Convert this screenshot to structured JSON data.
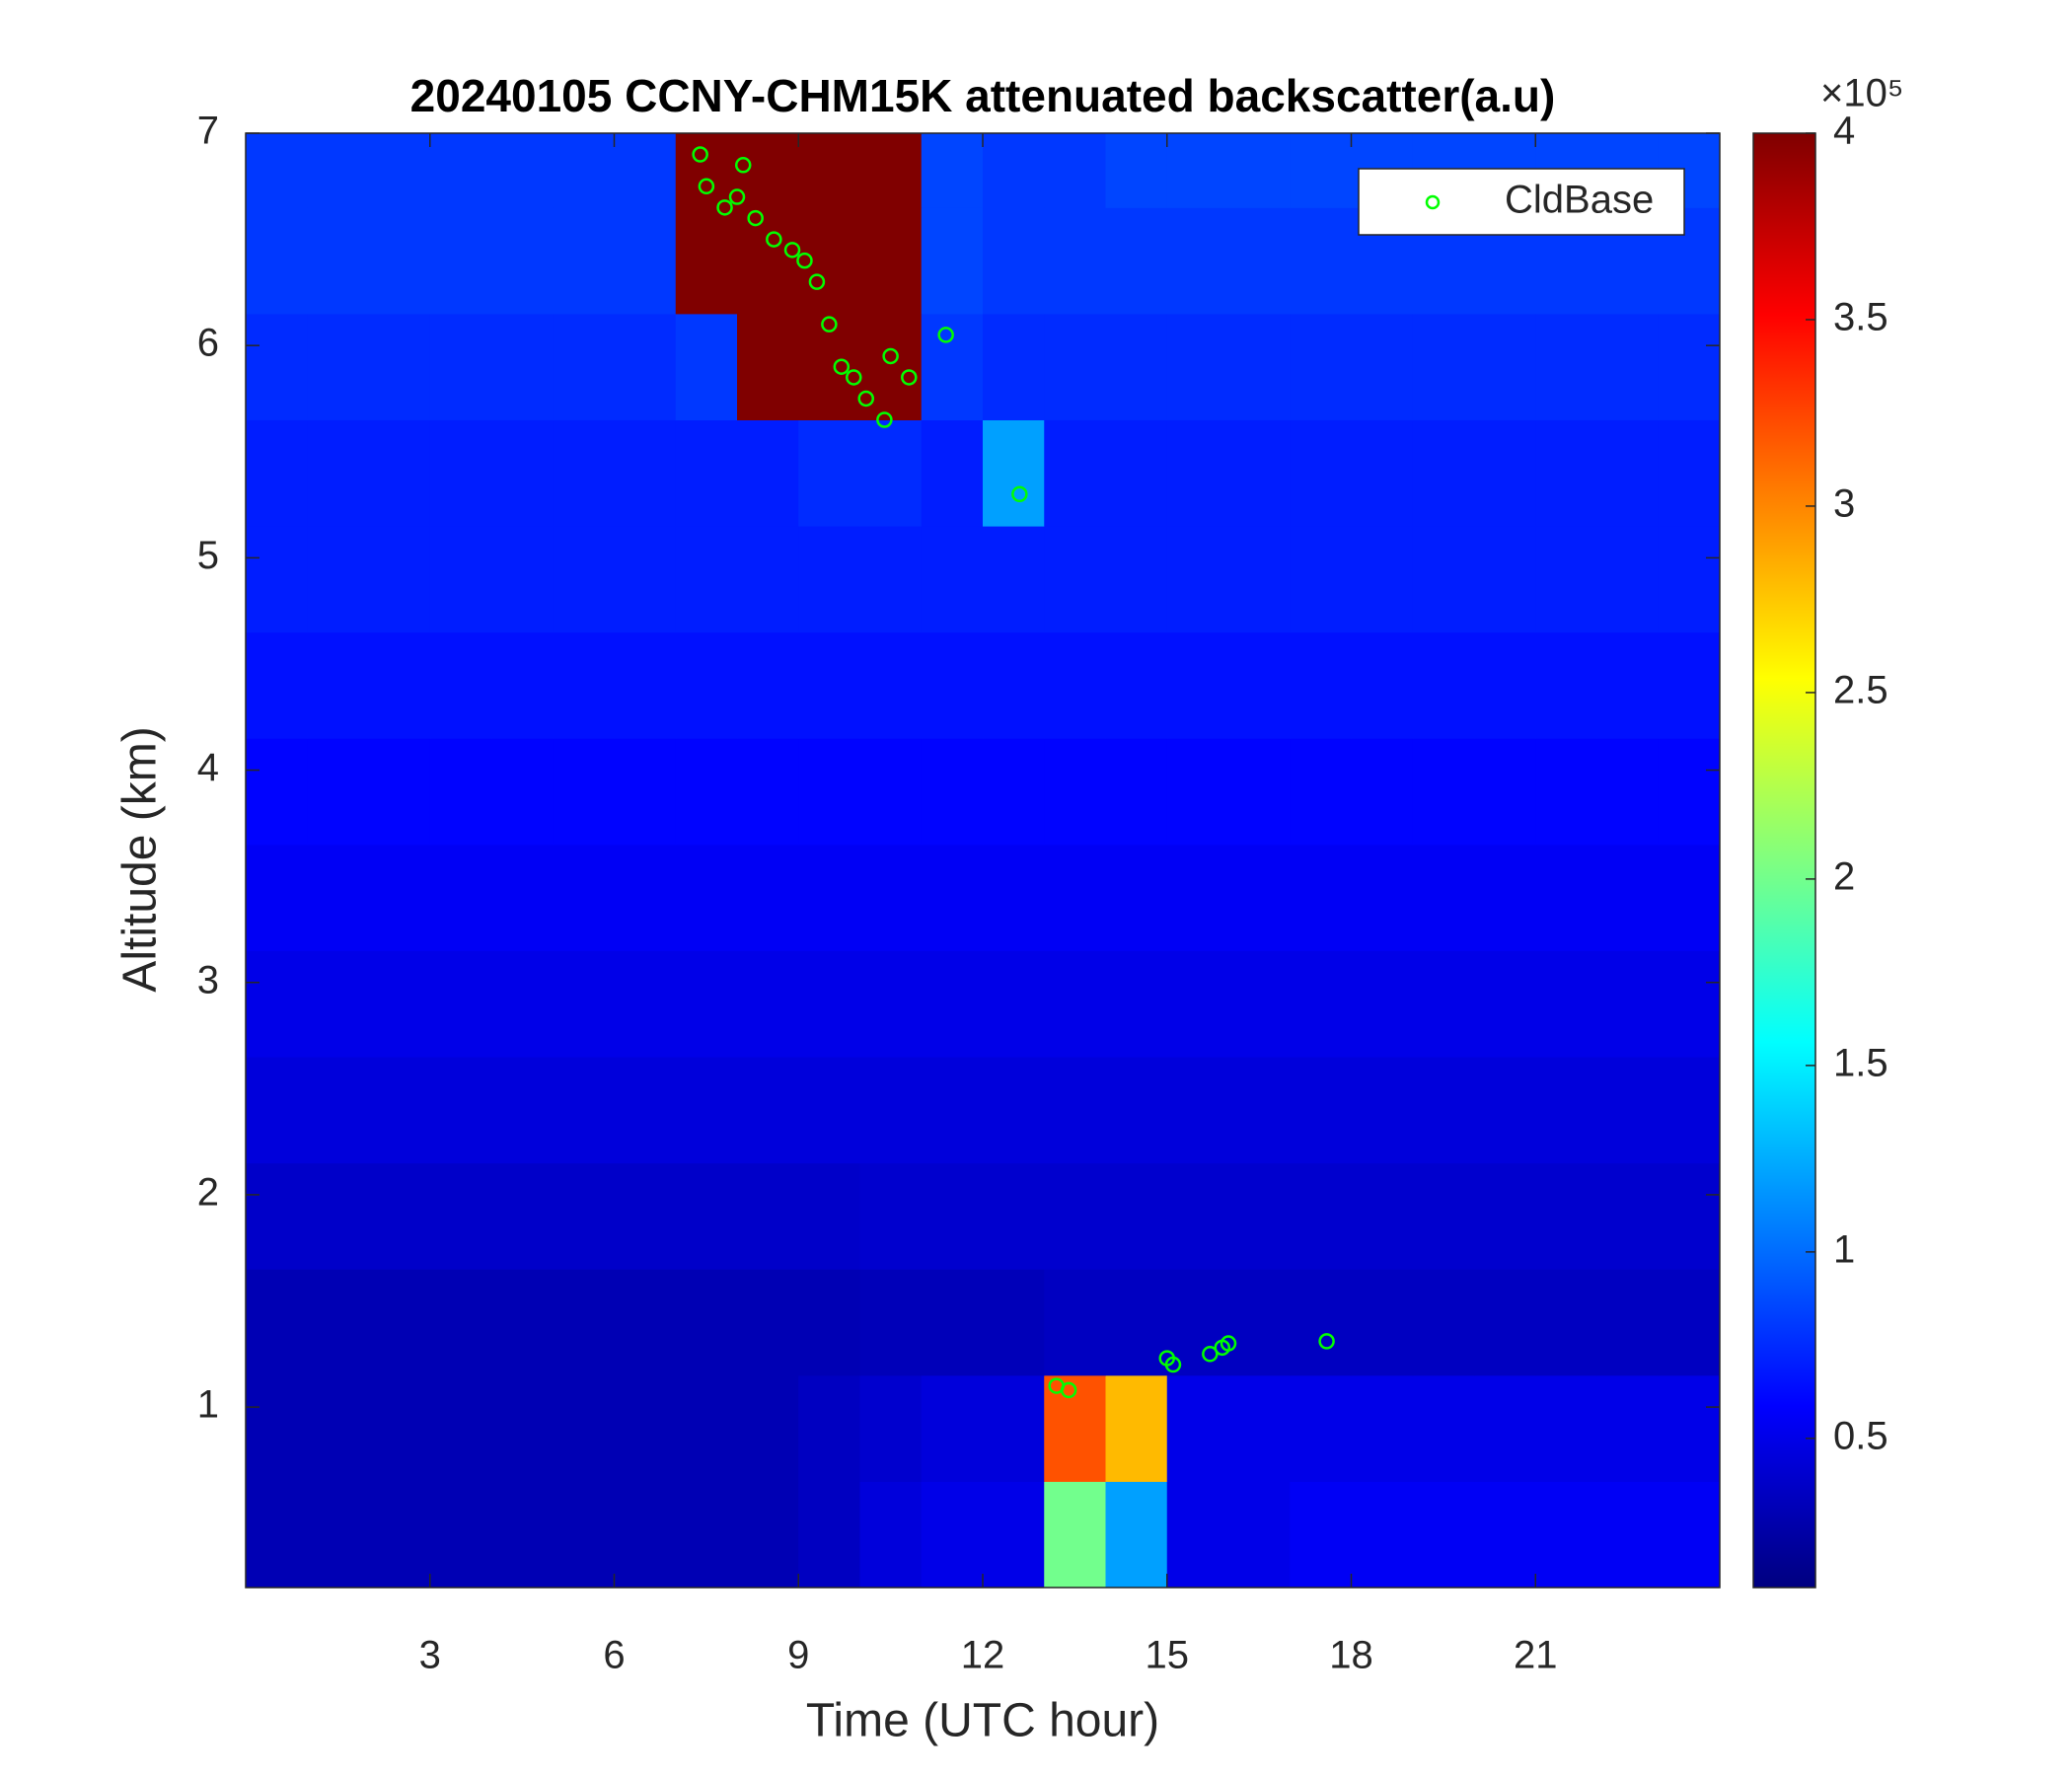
{
  "chart_data": {
    "type": "heatmap",
    "title": "20240105 CCNY-CHM15K attenuated backscatter(a.u)",
    "xlabel": "Time (UTC hour)",
    "ylabel": "Altitude (km)",
    "colormap": "jet",
    "colorbar_multiplier": "×10⁵",
    "x": [
      0.5,
      1.5,
      2.5,
      3.5,
      4.5,
      5.5,
      6.5,
      7.5,
      8.5,
      9.5,
      10.5,
      11.5,
      12.5,
      13.5,
      14.5,
      15.5,
      16.5,
      17.5,
      18.5,
      19.5,
      20.5,
      21.5,
      22.5,
      23.5
    ],
    "y": [
      0.4,
      0.9,
      1.4,
      1.9,
      2.4,
      2.9,
      3.4,
      3.9,
      4.4,
      4.9,
      5.4,
      5.9,
      6.4,
      6.9
    ],
    "z": [
      [
        0.3,
        0.3,
        0.3,
        0.3,
        0.3,
        0.3,
        0.3,
        0.3,
        0.3,
        0.35,
        0.45,
        0.5,
        0.5,
        2.0,
        1.2,
        0.5,
        0.5,
        0.55,
        0.55,
        0.55,
        0.55,
        0.55,
        0.55,
        0.55
      ],
      [
        0.3,
        0.3,
        0.3,
        0.3,
        0.3,
        0.3,
        0.3,
        0.3,
        0.3,
        0.35,
        0.4,
        0.45,
        0.45,
        3.2,
        2.8,
        0.5,
        0.5,
        0.5,
        0.5,
        0.5,
        0.5,
        0.5,
        0.5,
        0.5
      ],
      [
        0.3,
        0.3,
        0.3,
        0.3,
        0.3,
        0.3,
        0.3,
        0.3,
        0.3,
        0.3,
        0.32,
        0.32,
        0.32,
        0.35,
        0.35,
        0.35,
        0.35,
        0.35,
        0.35,
        0.35,
        0.35,
        0.35,
        0.35,
        0.35
      ],
      [
        0.38,
        0.38,
        0.38,
        0.38,
        0.38,
        0.38,
        0.38,
        0.38,
        0.38,
        0.38,
        0.4,
        0.4,
        0.4,
        0.4,
        0.4,
        0.4,
        0.4,
        0.4,
        0.4,
        0.4,
        0.4,
        0.4,
        0.4,
        0.4
      ],
      [
        0.45,
        0.45,
        0.45,
        0.45,
        0.45,
        0.45,
        0.45,
        0.45,
        0.45,
        0.45,
        0.45,
        0.45,
        0.45,
        0.45,
        0.45,
        0.45,
        0.45,
        0.45,
        0.45,
        0.45,
        0.45,
        0.45,
        0.45,
        0.45
      ],
      [
        0.5,
        0.5,
        0.5,
        0.5,
        0.5,
        0.5,
        0.5,
        0.5,
        0.5,
        0.5,
        0.5,
        0.5,
        0.5,
        0.5,
        0.5,
        0.5,
        0.5,
        0.5,
        0.5,
        0.5,
        0.5,
        0.5,
        0.5,
        0.5
      ],
      [
        0.55,
        0.55,
        0.55,
        0.55,
        0.55,
        0.55,
        0.55,
        0.55,
        0.55,
        0.55,
        0.55,
        0.55,
        0.55,
        0.55,
        0.55,
        0.55,
        0.55,
        0.55,
        0.55,
        0.55,
        0.55,
        0.55,
        0.55,
        0.55
      ],
      [
        0.6,
        0.6,
        0.6,
        0.6,
        0.6,
        0.6,
        0.6,
        0.6,
        0.6,
        0.6,
        0.6,
        0.6,
        0.6,
        0.6,
        0.6,
        0.6,
        0.6,
        0.6,
        0.6,
        0.6,
        0.6,
        0.6,
        0.6,
        0.6
      ],
      [
        0.65,
        0.65,
        0.65,
        0.65,
        0.65,
        0.65,
        0.65,
        0.65,
        0.65,
        0.65,
        0.65,
        0.65,
        0.65,
        0.65,
        0.65,
        0.65,
        0.65,
        0.65,
        0.65,
        0.65,
        0.65,
        0.65,
        0.65,
        0.65
      ],
      [
        0.7,
        0.7,
        0.7,
        0.7,
        0.7,
        0.7,
        0.7,
        0.7,
        0.7,
        0.7,
        0.7,
        0.7,
        0.7,
        0.7,
        0.7,
        0.7,
        0.7,
        0.7,
        0.7,
        0.7,
        0.7,
        0.7,
        0.7,
        0.7
      ],
      [
        0.7,
        0.7,
        0.7,
        0.7,
        0.7,
        0.7,
        0.7,
        0.7,
        0.7,
        0.75,
        0.75,
        0.7,
        1.2,
        0.7,
        0.7,
        0.7,
        0.7,
        0.7,
        0.7,
        0.7,
        0.7,
        0.7,
        0.7,
        0.7
      ],
      [
        0.75,
        0.75,
        0.75,
        0.75,
        0.75,
        0.75,
        0.75,
        0.8,
        4,
        4,
        4,
        0.8,
        0.75,
        0.75,
        0.75,
        0.75,
        0.75,
        0.75,
        0.75,
        0.75,
        0.75,
        0.75,
        0.75,
        0.75
      ],
      [
        0.8,
        0.8,
        0.8,
        0.8,
        0.8,
        0.8,
        0.8,
        4,
        4,
        4,
        4,
        0.85,
        0.8,
        0.8,
        0.8,
        0.8,
        0.8,
        0.8,
        0.8,
        0.8,
        0.8,
        0.8,
        0.8,
        0.8
      ],
      [
        0.8,
        0.8,
        0.8,
        0.8,
        0.8,
        0.8,
        0.8,
        4,
        4,
        4,
        4,
        0.85,
        0.8,
        0.8,
        0.85,
        0.85,
        0.85,
        0.85,
        0.85,
        0.85,
        0.85,
        0.85,
        0.85,
        0.85
      ]
    ],
    "xlim": [
      0,
      24
    ],
    "ylim": [
      0.15,
      7
    ],
    "xticks": [
      3,
      6,
      9,
      12,
      15,
      18,
      21
    ],
    "yticks": [
      1,
      2,
      3,
      4,
      5,
      6,
      7
    ],
    "clim": [
      0.1,
      4
    ],
    "cticks": [
      0.5,
      1,
      1.5,
      2,
      2.5,
      3,
      3.5,
      4
    ],
    "legend": "upper right",
    "series": [
      {
        "type": "scatter",
        "name": "CldBase",
        "color": "#00ff00",
        "x": [
          7.4,
          7.5,
          7.8,
          8.0,
          8.1,
          8.3,
          8.6,
          8.9,
          9.1,
          9.3,
          9.5,
          9.7,
          9.9,
          10.1,
          10.4,
          10.5,
          10.8,
          11.4,
          12.6,
          13.2,
          13.4,
          15.0,
          15.1,
          15.7,
          15.9,
          16.0,
          17.6
        ],
        "y": [
          6.9,
          6.75,
          6.65,
          6.7,
          6.85,
          6.6,
          6.5,
          6.45,
          6.4,
          6.3,
          6.1,
          5.9,
          5.85,
          5.75,
          5.65,
          5.95,
          5.85,
          6.05,
          5.3,
          1.1,
          1.08,
          1.23,
          1.2,
          1.25,
          1.28,
          1.3,
          1.31
        ]
      }
    ]
  }
}
